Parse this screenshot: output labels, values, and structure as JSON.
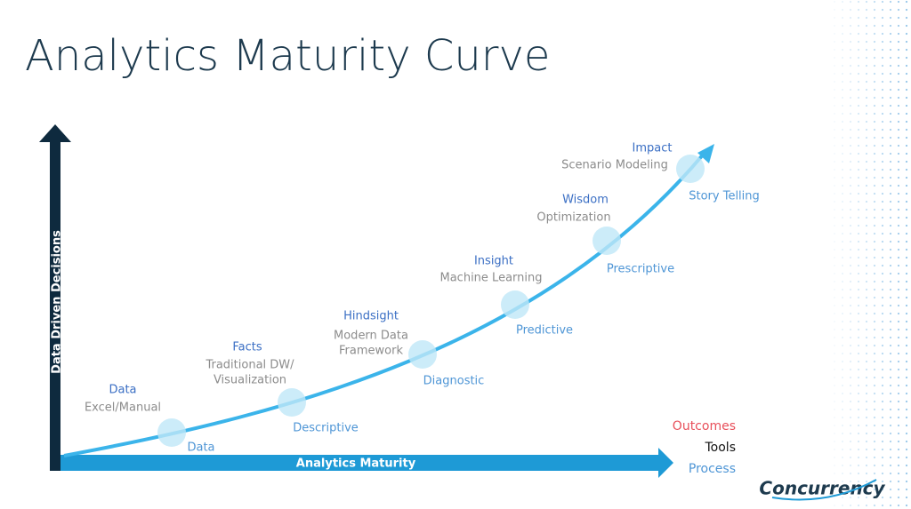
{
  "title": "Analytics Maturity Curve",
  "y_axis_label": "Data Driven Decisions",
  "x_axis_label": "Analytics Maturity",
  "stages": [
    {
      "outcome": "Data",
      "tool_lines": [
        "Excel/Manual"
      ],
      "process": "Data"
    },
    {
      "outcome": "Facts",
      "tool_lines": [
        "Traditional DW/",
        "Visualization"
      ],
      "process": "Descriptive"
    },
    {
      "outcome": "Hindsight",
      "tool_lines": [
        "Modern Data",
        "Framework"
      ],
      "process": "Diagnostic"
    },
    {
      "outcome": "Insight",
      "tool_lines": [
        "Machine Learning"
      ],
      "process": "Predictive"
    },
    {
      "outcome": "Wisdom",
      "tool_lines": [
        "Optimization"
      ],
      "process": "Prescriptive"
    },
    {
      "outcome": "Impact",
      "tool_lines": [
        "Scenario Modeling"
      ],
      "process": "Story Telling"
    }
  ],
  "legend": {
    "outcomes": "Outcomes",
    "tools": "Tools",
    "process": "Process"
  },
  "logo": "Concurrency"
}
